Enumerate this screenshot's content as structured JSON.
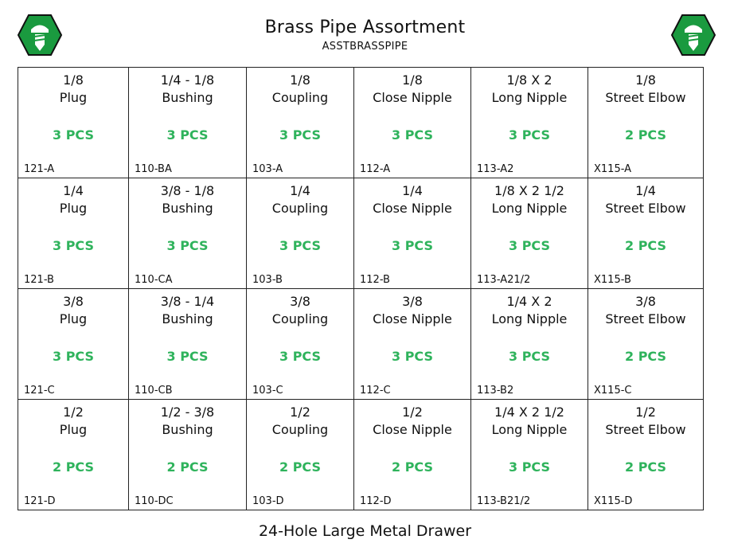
{
  "header": {
    "title": "Brass Pipe Assortment",
    "sku": "ASSTBRASSPIPE"
  },
  "colors": {
    "logo_green": "#1a9a3f",
    "logo_border": "#111111",
    "quantity_green": "#2fb35c"
  },
  "cells": [
    {
      "size": "1/8",
      "name": "Plug",
      "qty": "3 PCS",
      "code": "121-A"
    },
    {
      "size": "1/4 - 1/8",
      "name": "Bushing",
      "qty": "3 PCS",
      "code": "110-BA"
    },
    {
      "size": "1/8",
      "name": "Coupling",
      "qty": "3 PCS",
      "code": "103-A"
    },
    {
      "size": "1/8",
      "name": "Close Nipple",
      "qty": "3 PCS",
      "code": "112-A"
    },
    {
      "size": "1/8 X 2",
      "name": "Long Nipple",
      "qty": "3 PCS",
      "code": "113-A2"
    },
    {
      "size": "1/8",
      "name": "Street Elbow",
      "qty": "2 PCS",
      "code": "X115-A"
    },
    {
      "size": "1/4",
      "name": "Plug",
      "qty": "3 PCS",
      "code": "121-B"
    },
    {
      "size": "3/8 - 1/8",
      "name": "Bushing",
      "qty": "3 PCS",
      "code": "110-CA"
    },
    {
      "size": "1/4",
      "name": "Coupling",
      "qty": "3 PCS",
      "code": "103-B"
    },
    {
      "size": "1/4",
      "name": "Close Nipple",
      "qty": "3 PCS",
      "code": "112-B"
    },
    {
      "size": "1/8 X 2 1/2",
      "name": "Long Nipple",
      "qty": "3 PCS",
      "code": "113-A21/2"
    },
    {
      "size": "1/4",
      "name": "Street Elbow",
      "qty": "2 PCS",
      "code": "X115-B"
    },
    {
      "size": "3/8",
      "name": "Plug",
      "qty": "3 PCS",
      "code": "121-C"
    },
    {
      "size": "3/8 - 1/4",
      "name": "Bushing",
      "qty": "3 PCS",
      "code": "110-CB"
    },
    {
      "size": "3/8",
      "name": "Coupling",
      "qty": "3 PCS",
      "code": "103-C"
    },
    {
      "size": "3/8",
      "name": "Close Nipple",
      "qty": "3 PCS",
      "code": "112-C"
    },
    {
      "size": "1/4 X 2",
      "name": "Long Nipple",
      "qty": "3 PCS",
      "code": "113-B2"
    },
    {
      "size": "3/8",
      "name": "Street Elbow",
      "qty": "2 PCS",
      "code": "X115-C"
    },
    {
      "size": "1/2",
      "name": "Plug",
      "qty": "2 PCS",
      "code": "121-D"
    },
    {
      "size": "1/2 - 3/8",
      "name": "Bushing",
      "qty": "2 PCS",
      "code": "110-DC"
    },
    {
      "size": "1/2",
      "name": "Coupling",
      "qty": "2 PCS",
      "code": "103-D"
    },
    {
      "size": "1/2",
      "name": "Close Nipple",
      "qty": "2 PCS",
      "code": "112-D"
    },
    {
      "size": "1/4 X 2 1/2",
      "name": "Long Nipple",
      "qty": "3 PCS",
      "code": "113-B21/2"
    },
    {
      "size": "1/2",
      "name": "Street Elbow",
      "qty": "2 PCS",
      "code": "X115-D"
    }
  ],
  "footer": {
    "drawer_label": "24-Hole Large Metal Drawer"
  }
}
